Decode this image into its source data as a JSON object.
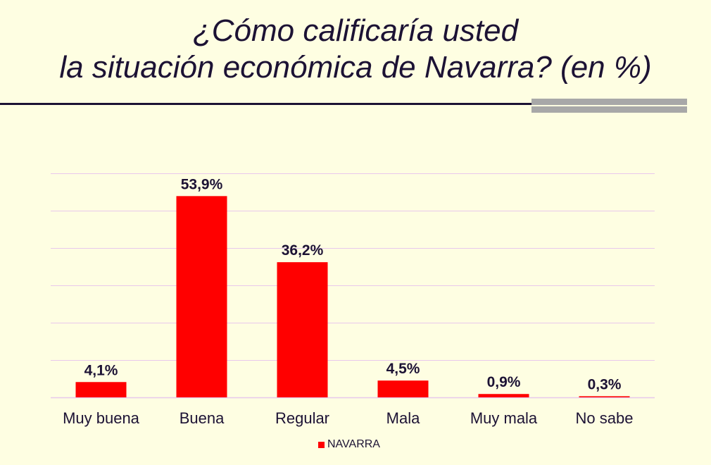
{
  "chart_data": {
    "type": "bar",
    "title_line1": "¿Cómo calificaría usted",
    "title_line2": "la situación económica de Navarra? (en %)",
    "categories": [
      "Muy buena",
      "Buena",
      "Regular",
      "Mala",
      "Muy mala",
      "No sabe"
    ],
    "series": [
      {
        "name": "NAVARRA",
        "values": [
          4.1,
          53.9,
          36.2,
          4.5,
          0.9,
          0.3
        ],
        "labels": [
          "4,1%",
          "53,9%",
          "36,2%",
          "4,5%",
          "0,9%",
          "0,3%"
        ]
      }
    ],
    "ylim": [
      0,
      60
    ],
    "grid": true,
    "legend_position": "bottom",
    "colors": {
      "bar": "#ff0000",
      "grid": "#e8c8ec",
      "text": "#1c1234",
      "background": "#fefee2"
    }
  }
}
